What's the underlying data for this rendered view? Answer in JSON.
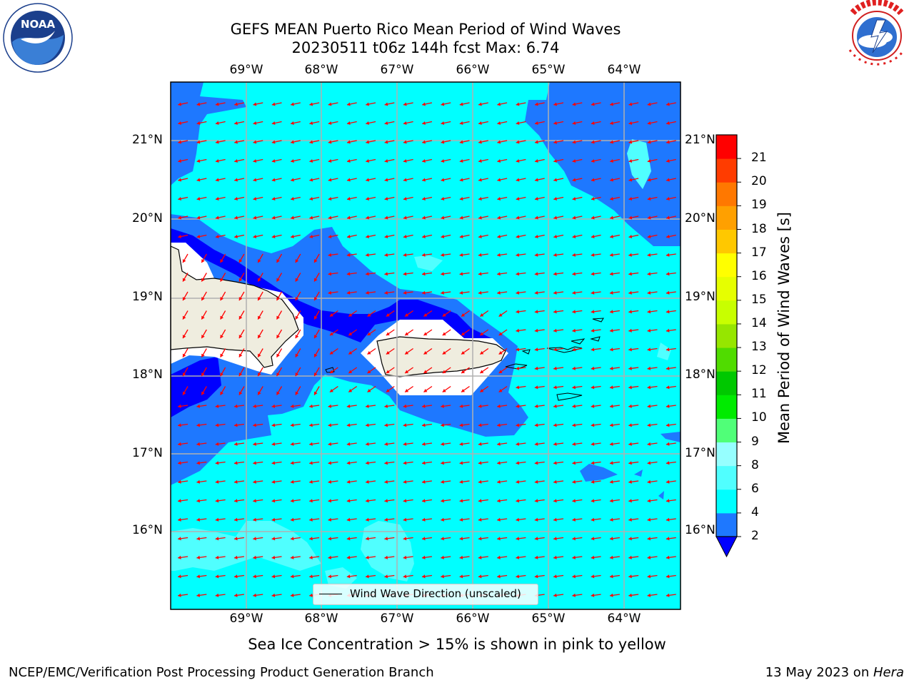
{
  "header": {
    "title_line1": "GEFS MEAN Puerto Rico Mean Period of Wind Waves",
    "title_line2": "20230511 t06z 144h fcst   Max: 6.74"
  },
  "logos": {
    "left": {
      "name": "NOAA",
      "ring_text": "NATIONAL OCEANIC AND ATMOSPHERIC ADMINISTRATION · U.S. DEPARTMENT OF COMMERCE"
    },
    "right": {
      "ring_text": "NATIONAL WEATHER SERVICE"
    }
  },
  "map": {
    "lon_labels": [
      "69°W",
      "68°W",
      "67°W",
      "66°W",
      "65°W",
      "64°W"
    ],
    "lat_labels": [
      "21°N",
      "20°N",
      "19°N",
      "18°N",
      "17°N",
      "16°N"
    ],
    "lon_range": [
      -69.98,
      -63.22
    ],
    "lat_range": [
      15.02,
      21.73
    ],
    "legend_label": "Wind Wave Direction (unscaled)",
    "arrow_color": "#ff0000",
    "grid": true,
    "land_color": "#efeddf",
    "colors": {
      "lt2": "#0000ff",
      "2_4": "#1e78ff",
      "4_6": "#00ffff",
      "6_8": "#50ffff"
    }
  },
  "colorbar": {
    "title": "Mean Period of Wind Waves [s]",
    "ticks": [
      "2",
      "4",
      "6",
      "8",
      "9",
      "10",
      "11",
      "12",
      "13",
      "14",
      "15",
      "16",
      "17",
      "18",
      "19",
      "20",
      "21"
    ],
    "colors": [
      "#1e78ff",
      "#00ffff",
      "#50ffff",
      "#96ffff",
      "#50ff78",
      "#00eb00",
      "#00c800",
      "#50dc00",
      "#96e600",
      "#c8ff00",
      "#e6ff00",
      "#ffff00",
      "#ffc800",
      "#ffa000",
      "#ff7800",
      "#ff3c00",
      "#ff0000"
    ],
    "under_color": "#0000ff"
  },
  "footer": {
    "sea_ice_note": "Sea Ice Concentration > 15% is shown in pink to yellow",
    "left": "NCEP/EMC/Verification Post Processing Product Generation Branch",
    "right_prefix": "13 May 2023 on ",
    "right_host": "Hera"
  }
}
